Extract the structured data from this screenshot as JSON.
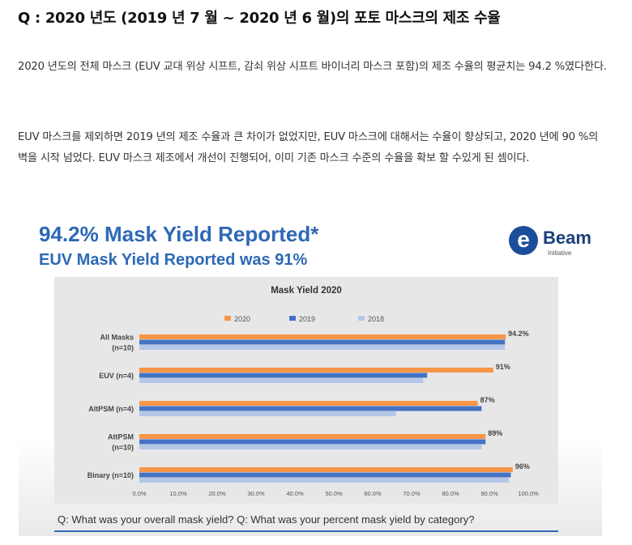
{
  "question_title": "Q : 2020 년도 (2019 년 7 월 ~ 2020 년 6 월)의 포토 마스크의 제조 수율",
  "paragraphs": [
    "2020 년도의 전체 마스크 (EUV 교대 위상 시프트, 감쇠 위상 시프트 바이너리 마스크 포함)의 제조 수율의 평균치는 94.2 %였다한다.",
    "EUV 마스크를 제외하면 2019 년의 제조 수율과 큰 차이가 없었지만, EUV 마스크에 대해서는 수율이 향상되고, 2020 년에 90 %의 벽을 시작 넘었다. EUV 마스크 제조에서 개선이 진행되어, 이미 기존 마스크 수준의 수율을 확보 할 수있게 된 셈이다."
  ],
  "slide": {
    "heading": "94.2% Mask Yield Reported*",
    "subheading": "EUV Mask Yield Reported was 91%",
    "logo": {
      "mark": "e",
      "word": "Beam",
      "sub": "Initiative"
    },
    "footer": "Q: What was your overall mask yield?  Q: What was your percent mask yield by category?"
  },
  "colors": {
    "s2020": "#f79646",
    "s2019": "#4472c4",
    "s2018": "#b4c7e7",
    "heading": "#2e68b5"
  },
  "chart_data": {
    "type": "bar",
    "orientation": "horizontal",
    "title": "Mask Yield  2020",
    "categories": [
      "All Masks (n=10)",
      "EUV (n=4)",
      "AltPSM (n=4)",
      "AttPSM (n=10)",
      "Binary (n=10)"
    ],
    "category_lines": [
      [
        "All Masks",
        "(n=10)"
      ],
      [
        "EUV (n=4)"
      ],
      [
        "AltPSM (n=4)"
      ],
      [
        "AttPSM",
        "(n=10)"
      ],
      [
        "Binary (n=10)"
      ]
    ],
    "series": [
      {
        "name": "2020",
        "values": [
          94.2,
          91,
          87,
          89,
          96
        ],
        "labels": [
          "94.2%",
          "91%",
          "87%",
          "89%",
          "96%"
        ]
      },
      {
        "name": "2019",
        "values": [
          94,
          74,
          88,
          89,
          95.5
        ]
      },
      {
        "name": "2018",
        "values": [
          94,
          73,
          66,
          88,
          95
        ]
      }
    ],
    "xlim": [
      0,
      100
    ],
    "xticks": [
      "0.0%",
      "10.0%",
      "20.0%",
      "30.0%",
      "40.0%",
      "50.0%",
      "60.0%",
      "70.0%",
      "80.0%",
      "90.0%",
      "100.0%"
    ],
    "legend_position": "top",
    "grid": false
  }
}
